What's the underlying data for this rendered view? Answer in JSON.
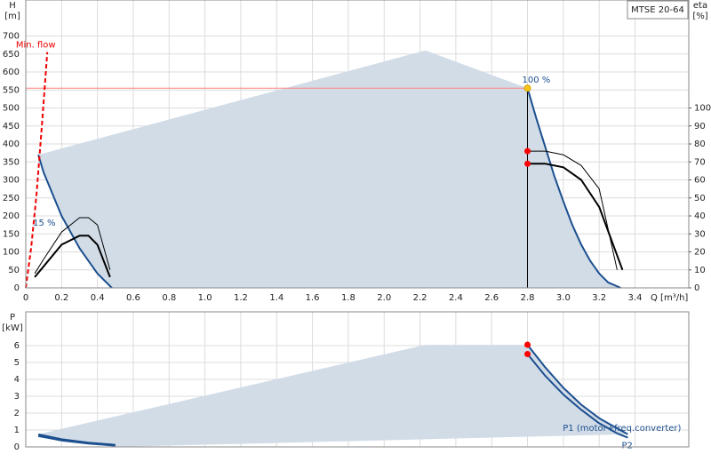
{
  "chart_data": [
    {
      "type": "line",
      "title": "MTSE 20-64",
      "ylabel": [
        "H",
        "[m]"
      ],
      "y2label": [
        "eta",
        "[%]"
      ],
      "xlabel": "Q [m³/h]",
      "xlim": [
        0,
        3.7
      ],
      "xticks": [
        0,
        0.2,
        0.4,
        0.6,
        0.8,
        {
          "value": 1,
          "label": "1.0"
        },
        1.2,
        1.4,
        1.6,
        1.8,
        {
          "value": 2,
          "label": "2.0"
        },
        2.2,
        2.4,
        2.6,
        2.8,
        {
          "value": 3,
          "label": "3.0"
        },
        3.2,
        3.4
      ],
      "show_xtick_labels": true,
      "ylim": [
        0,
        800
      ],
      "yticks": [
        0,
        50,
        100,
        150,
        200,
        250,
        300,
        350,
        400,
        450,
        500,
        550,
        600,
        650,
        700
      ],
      "y2lim": [
        0,
        160
      ],
      "y2ticks": [
        0,
        10,
        20,
        30,
        40,
        50,
        60,
        70,
        80,
        90,
        100
      ],
      "grid": true,
      "series": [
        {
          "color": "#d1dce7",
          "fill": true,
          "x": [
            0.07,
            2.23,
            2.8,
            2.85,
            2.9,
            2.95,
            3.0,
            3.05,
            3.1,
            3.15,
            3.2,
            3.25,
            3.32,
            0.48,
            0.4,
            0.3,
            0.2,
            0.1,
            0.07
          ],
          "values": [
            370,
            660,
            555,
            470,
            390,
            310,
            240,
            175,
            120,
            75,
            40,
            15,
            0,
            0,
            40,
            110,
            200,
            320,
            370
          ]
        },
        {
          "color": "#ff8080",
          "width": 1,
          "x": [
            0,
            2.8
          ],
          "values": [
            555,
            555
          ]
        },
        {
          "color": "#000000",
          "width": 1,
          "x": [
            2.8,
            2.8
          ],
          "values": [
            0,
            555
          ]
        },
        {
          "name": "100 %",
          "color": "#1c4f8f",
          "width": 2,
          "x": [
            2.8,
            2.85,
            2.9,
            2.95,
            3.0,
            3.05,
            3.1,
            3.15,
            3.2,
            3.25,
            3.32
          ],
          "values": [
            555,
            470,
            390,
            310,
            240,
            175,
            120,
            75,
            40,
            15,
            0
          ]
        },
        {
          "name": "15 %",
          "color": "#1c4f8f",
          "width": 2,
          "x": [
            0.07,
            0.1,
            0.2,
            0.3,
            0.4,
            0.48
          ],
          "values": [
            370,
            320,
            200,
            110,
            40,
            0
          ]
        },
        {
          "name": "Min. flow",
          "color": "#ee0000",
          "width": 2,
          "dashed": true,
          "x": [
            0,
            0.03,
            0.06,
            0.09,
            0.12
          ],
          "values": [
            0,
            110,
            260,
            450,
            655
          ]
        },
        {
          "color": "#000000",
          "width": 1,
          "axis": "y2",
          "x": [
            2.8,
            2.9,
            3.0,
            3.1,
            3.2,
            3.3
          ],
          "values": [
            76,
            76,
            74,
            68,
            55,
            10
          ]
        },
        {
          "color": "#000000",
          "width": 2,
          "axis": "y2",
          "x": [
            2.8,
            2.9,
            3.0,
            3.1,
            3.2,
            3.33
          ],
          "values": [
            69,
            69,
            67,
            60,
            45,
            10
          ]
        },
        {
          "color": "#000000",
          "width": 1,
          "axis": "y2",
          "x": [
            0.05,
            0.1,
            0.2,
            0.3,
            0.35,
            0.4,
            0.47
          ],
          "values": [
            8,
            16,
            31,
            39,
            39,
            35,
            10
          ]
        },
        {
          "color": "#000000",
          "width": 2,
          "axis": "y2",
          "x": [
            0.05,
            0.1,
            0.2,
            0.3,
            0.35,
            0.4,
            0.47
          ],
          "values": [
            6,
            12,
            24,
            29,
            29,
            24,
            6
          ]
        }
      ],
      "points": [
        {
          "x": 2.8,
          "y": 555,
          "color": "#f5c518"
        },
        {
          "x": 2.8,
          "y": 76,
          "axis": "y2",
          "color": "#ff0000"
        },
        {
          "x": 2.8,
          "y": 69,
          "axis": "y2",
          "color": "#ff0000"
        }
      ]
    },
    {
      "type": "line",
      "ylabel": [
        "P",
        "[kW]"
      ],
      "xlim": [
        0,
        3.7
      ],
      "xticks": [
        0,
        0.2,
        0.4,
        0.6,
        0.8,
        1,
        1.2,
        1.4,
        1.6,
        1.8,
        2,
        2.2,
        2.4,
        2.6,
        2.8,
        3,
        3.2,
        3.4
      ],
      "show_xtick_labels": false,
      "ylim": [
        0,
        8
      ],
      "yticks": [
        0,
        1,
        2,
        3,
        4,
        5,
        6
      ],
      "grid": true,
      "series": [
        {
          "color": "#d1dce7",
          "fill": true,
          "x": [
            0.07,
            2.23,
            2.8,
            2.9,
            3.0,
            3.1,
            3.2,
            3.3,
            3.36,
            0.5,
            0.07
          ],
          "values": [
            0.75,
            6.05,
            6.05,
            4.7,
            3.5,
            2.5,
            1.7,
            1.1,
            0.75,
            0,
            0.55
          ]
        },
        {
          "name": "P1 (motor+freq.converter)",
          "color": "#1c4f8f",
          "width": 2,
          "x": [
            2.8,
            2.9,
            3.0,
            3.1,
            3.2,
            3.3,
            3.36
          ],
          "values": [
            6.05,
            4.7,
            3.5,
            2.5,
            1.7,
            1.1,
            0.75
          ]
        },
        {
          "name": "P2",
          "color": "#1c4f8f",
          "width": 2,
          "x": [
            2.8,
            2.9,
            3.0,
            3.1,
            3.2,
            3.3,
            3.36
          ],
          "values": [
            5.5,
            4.2,
            3.1,
            2.2,
            1.4,
            0.8,
            0.55
          ]
        },
        {
          "color": "#1c4f8f",
          "width": 2,
          "x": [
            0.07,
            0.2,
            0.35,
            0.5
          ],
          "values": [
            0.75,
            0.45,
            0.25,
            0.12
          ]
        },
        {
          "color": "#1c4f8f",
          "width": 2,
          "x": [
            0.07,
            0.2,
            0.35,
            0.5
          ],
          "values": [
            0.65,
            0.38,
            0.2,
            0.08
          ]
        }
      ],
      "points": [
        {
          "x": 2.8,
          "y": 6.05,
          "color": "#ff0000"
        },
        {
          "x": 2.8,
          "y": 5.5,
          "color": "#ff0000"
        }
      ]
    }
  ]
}
